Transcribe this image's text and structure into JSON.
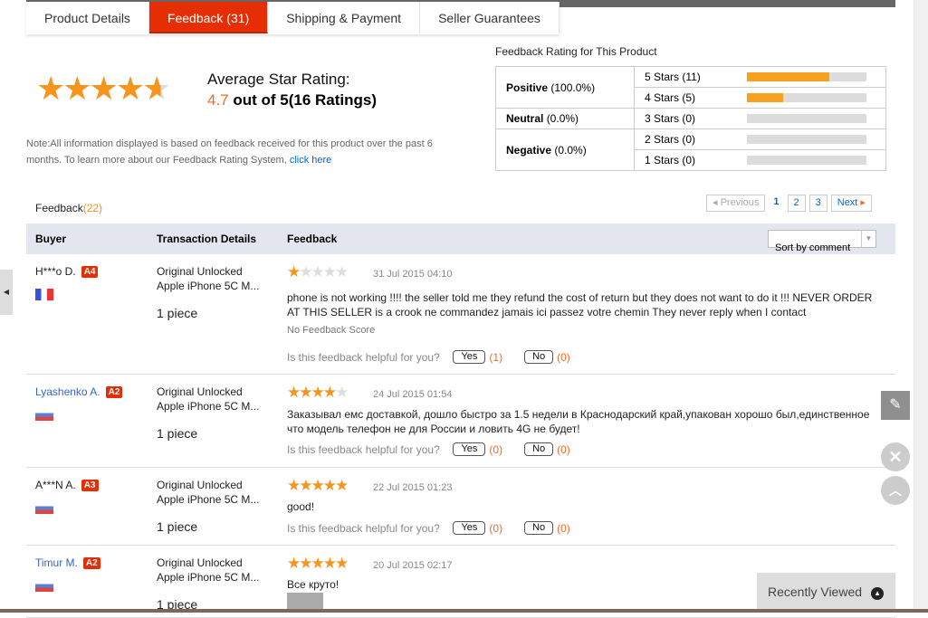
{
  "tabs": [
    "Product Details",
    "Feedback (31)",
    "Shipping & Payment",
    "Seller Guarantees"
  ],
  "summary": {
    "stars": 4.7,
    "title": "Average Star Rating:",
    "value": "4.7",
    "value_suffix": " out of 5(16 Ratings)",
    "note": "Note:All information displayed is based on feedback received for this product over the past 6 months. To learn more about our Feedback Rating System, ",
    "note_link": "click here"
  },
  "rating": {
    "title": "Feedback Rating for This Product",
    "groups": [
      {
        "label": "Positive",
        "pct": "(100.0%)"
      },
      {
        "label": "Neutral",
        "pct": "(0.0%)"
      },
      {
        "label": "Negative",
        "pct": "(0.0%)"
      }
    ],
    "rows": [
      {
        "label": "5 Stars (11)",
        "fill": 0.69
      },
      {
        "label": "4 Stars (5)",
        "fill": 0.31
      },
      {
        "label": "3 Stars (0)",
        "fill": 0
      },
      {
        "label": "2 Stars (0)",
        "fill": 0
      },
      {
        "label": "1 Stars (0)",
        "fill": 0
      }
    ],
    "bar_color": "#f8a11e"
  },
  "feedback_list": {
    "label": "Feedback",
    "count": "(22)"
  },
  "pager": {
    "previous": "Previous",
    "pages": [
      "1",
      "2",
      "3"
    ],
    "current": "1",
    "next": "Next"
  },
  "table": {
    "headers": [
      "Buyer",
      "Transaction Details",
      "Feedback"
    ],
    "sort": "Sort by comment"
  },
  "helpful": {
    "question": "Is this feedback helpful for you?",
    "yes": "Yes",
    "no": "No"
  },
  "reviews": [
    {
      "buyer": "H***o D.",
      "level": "A4",
      "flag": "France",
      "product": [
        "Original Unlocked",
        "Apple iPhone 5C M..."
      ],
      "qty": "1 piece",
      "stars": 1,
      "date": "31 Jul 2015 04:10",
      "text": "phone is not working !!!! the seller told me they refund the cost of return but they does not want to do it !!! NEVER ORDER AT THIS SELLER is a crook ne commandez jamais ici passez votre chemin They never reply when I contact",
      "score": "No Feedback Score",
      "yes_count": "(1)",
      "no_count": "(0)"
    },
    {
      "buyer": "Lyashenko A.",
      "level": "A2",
      "flag": "Russia",
      "product": [
        "Original Unlocked",
        "Apple iPhone 5C M..."
      ],
      "qty": "1 piece",
      "stars": 4,
      "date": "24 Jul 2015 01:54",
      "text": "Заказывал емс доставкой, дошло быстро за 1.5 недели в Краснодарский край,упакован хорошо был,единственное что модель телефон не для России и ловить 4G не будет!",
      "yes_count": "(0)",
      "no_count": "(0)"
    },
    {
      "buyer": "A***N A.",
      "level": "A3",
      "flag": "Russia",
      "product": [
        "Original Unlocked",
        "Apple iPhone 5C M..."
      ],
      "qty": "1 piece",
      "stars": 5,
      "date": "22 Jul 2015 01:23",
      "text": "good!",
      "yes_count": "(0)",
      "no_count": "(0)"
    },
    {
      "buyer": "Timur M.",
      "level": "A2",
      "flag": "Russia",
      "product": [
        "Original Unlocked",
        "Apple iPhone 5C M..."
      ],
      "qty": "1 piece",
      "stars": 5,
      "date": "20 Jul 2015 02:17",
      "text": "Все круто!"
    }
  ],
  "recently_viewed": "Recently Viewed"
}
